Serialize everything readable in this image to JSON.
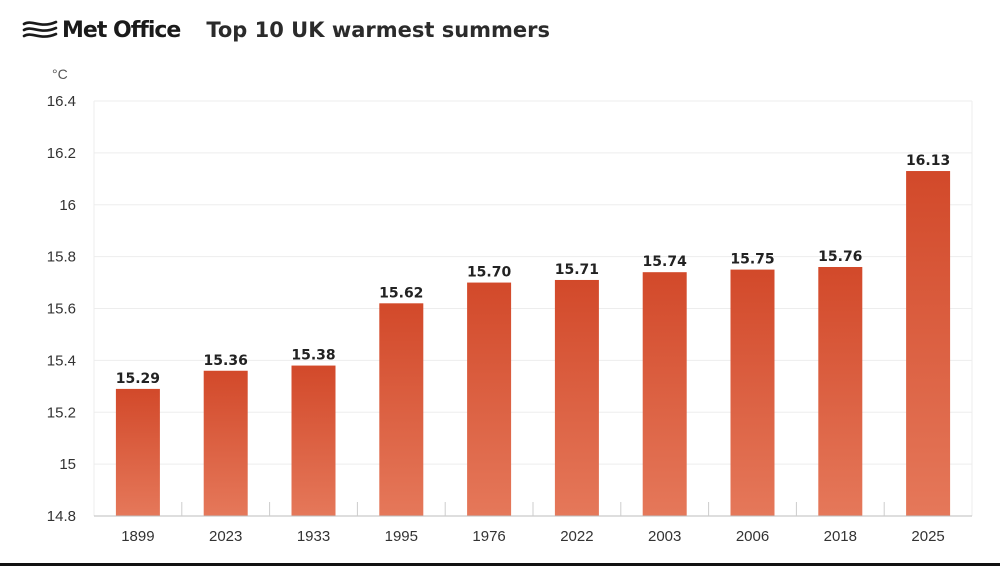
{
  "brand": {
    "name": "Met Office",
    "icon": "met-office-swirl-icon"
  },
  "chart_data": {
    "type": "bar",
    "title": "Top 10 UK warmest summers",
    "ylabel": "°C",
    "xlabel": "",
    "categories": [
      "1899",
      "2023",
      "1933",
      "1995",
      "1976",
      "2022",
      "2003",
      "2006",
      "2018",
      "2025"
    ],
    "values": [
      15.29,
      15.36,
      15.38,
      15.62,
      15.7,
      15.71,
      15.74,
      15.75,
      15.76,
      16.13
    ],
    "labels": [
      "15.29",
      "15.36",
      "15.38",
      "15.62",
      "15.70",
      "15.71",
      "15.74",
      "15.75",
      "15.76",
      "16.13"
    ],
    "ylim": [
      14.8,
      16.4
    ],
    "yticks": [
      14.8,
      15,
      15.2,
      15.4,
      15.6,
      15.8,
      16,
      16.2,
      16.4
    ],
    "ytick_labels": [
      "14.8",
      "15",
      "15.2",
      "15.4",
      "15.6",
      "15.8",
      "16",
      "16.2",
      "16.4"
    ],
    "grid": true,
    "colors": {
      "bar_top": "#d2492a",
      "bar_bottom": "#e5785a",
      "grid": "#ededed",
      "axis": "#bdbdbd",
      "text": "#333333"
    }
  }
}
